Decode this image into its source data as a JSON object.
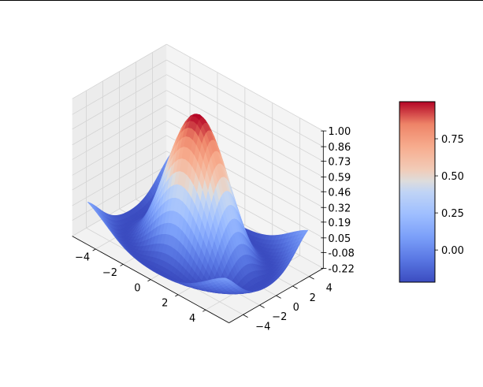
{
  "chart_data": {
    "type": "surface3d",
    "title": "",
    "xlabel": "",
    "ylabel": "",
    "zlabel": "",
    "function": "z = sin(sqrt(x^2 + y^2)) / sqrt(x^2 + y^2)",
    "x_range": [
      -5,
      5
    ],
    "y_range": [
      -5,
      5
    ],
    "z_range": [
      -0.22,
      1.0
    ],
    "x_ticks": [
      "−4",
      "−2",
      "0",
      "2",
      "4"
    ],
    "y_ticks": [
      "−4",
      "−2",
      "0",
      "2",
      "4"
    ],
    "z_ticks": [
      "-0.22",
      "-0.08",
      "0.05",
      "0.19",
      "0.32",
      "0.46",
      "0.59",
      "0.73",
      "0.86",
      "1.00"
    ],
    "colormap": "coolwarm",
    "colorbar": {
      "range": [
        -0.217,
        1.0
      ],
      "ticks": [
        "0.00",
        "0.25",
        "0.50",
        "0.75"
      ],
      "tick_values": [
        0.0,
        0.25,
        0.5,
        0.75
      ]
    },
    "grid": true,
    "colors": {
      "low": "#3b4cc0",
      "mid": "#dddddd",
      "high": "#b40426",
      "pane": "#f2f2f2",
      "grid": "#d4d4d4"
    }
  }
}
